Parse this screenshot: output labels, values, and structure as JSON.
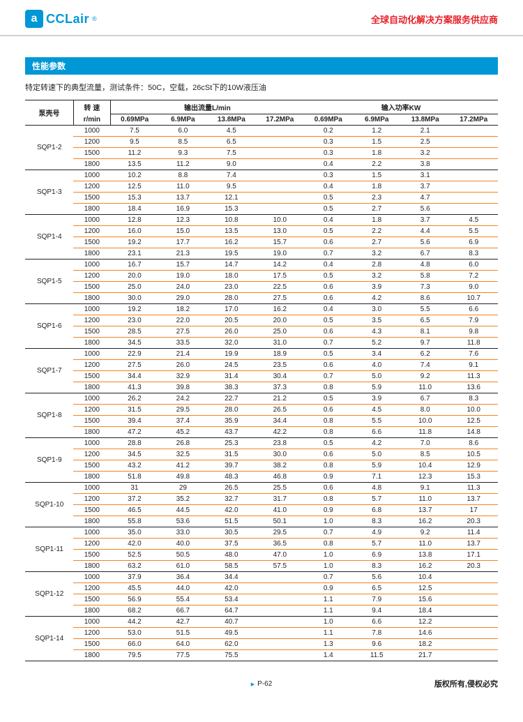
{
  "brand": {
    "logo_text": "CCLair",
    "reg_mark": "®"
  },
  "header": {
    "slogan": "全球自动化解决方案服务供应商"
  },
  "section": {
    "title": "性能参数"
  },
  "conditions": "特定转速下的典型流量，测试条件：50C，空载，26cSt下的10W液压油",
  "table": {
    "col_pump": "泵壳号",
    "col_speed": "转 速",
    "col_speed_unit": "r/min",
    "group_flow": "输出流量L/min",
    "group_power": "输入功率KW",
    "pressure_cols": [
      "0.69MPa",
      "6.9MPa",
      "13.8MPa",
      "17.2MPa"
    ],
    "groups": [
      {
        "pump": "SQP1-2",
        "rows": [
          {
            "r": "1000",
            "f": [
              "7.5",
              "6.0",
              "4.5",
              ""
            ],
            "p": [
              "0.2",
              "1.2",
              "2.1",
              ""
            ]
          },
          {
            "r": "1200",
            "f": [
              "9.5",
              "8.5",
              "6.5",
              ""
            ],
            "p": [
              "0.3",
              "1.5",
              "2.5",
              ""
            ]
          },
          {
            "r": "1500",
            "f": [
              "11.2",
              "9.3",
              "7.5",
              ""
            ],
            "p": [
              "0.3",
              "1.8",
              "3.2",
              ""
            ]
          },
          {
            "r": "1800",
            "f": [
              "13.5",
              "11.2",
              "9.0",
              ""
            ],
            "p": [
              "0.4",
              "2.2",
              "3.8",
              ""
            ]
          }
        ]
      },
      {
        "pump": "SQP1-3",
        "rows": [
          {
            "r": "1000",
            "f": [
              "10.2",
              "8.8",
              "7.4",
              ""
            ],
            "p": [
              "0.3",
              "1.5",
              "3.1",
              ""
            ]
          },
          {
            "r": "1200",
            "f": [
              "12.5",
              "11.0",
              "9.5",
              ""
            ],
            "p": [
              "0.4",
              "1.8",
              "3.7",
              ""
            ]
          },
          {
            "r": "1500",
            "f": [
              "15.3",
              "13.7",
              "12.1",
              ""
            ],
            "p": [
              "0.5",
              "2.3",
              "4.7",
              ""
            ]
          },
          {
            "r": "1800",
            "f": [
              "18.4",
              "16.9",
              "15.3",
              ""
            ],
            "p": [
              "0.5",
              "2.7",
              "5.6",
              ""
            ]
          }
        ]
      },
      {
        "pump": "SQP1-4",
        "rows": [
          {
            "r": "1000",
            "f": [
              "12.8",
              "12.3",
              "10.8",
              "10.0"
            ],
            "p": [
              "0.4",
              "1.8",
              "3.7",
              "4.5"
            ]
          },
          {
            "r": "1200",
            "f": [
              "16.0",
              "15.0",
              "13.5",
              "13.0"
            ],
            "p": [
              "0.5",
              "2.2",
              "4.4",
              "5.5"
            ]
          },
          {
            "r": "1500",
            "f": [
              "19.2",
              "17.7",
              "16.2",
              "15.7"
            ],
            "p": [
              "0.6",
              "2.7",
              "5.6",
              "6.9"
            ]
          },
          {
            "r": "1800",
            "f": [
              "23.1",
              "21.3",
              "19.5",
              "19.0"
            ],
            "p": [
              "0.7",
              "3.2",
              "6.7",
              "8.3"
            ]
          }
        ]
      },
      {
        "pump": "SQP1-5",
        "rows": [
          {
            "r": "1000",
            "f": [
              "16.7",
              "15.7",
              "14.7",
              "14.2"
            ],
            "p": [
              "0.4",
              "2.8",
              "4.8",
              "6.0"
            ]
          },
          {
            "r": "1200",
            "f": [
              "20.0",
              "19.0",
              "18.0",
              "17.5"
            ],
            "p": [
              "0.5",
              "3.2",
              "5.8",
              "7.2"
            ]
          },
          {
            "r": "1500",
            "f": [
              "25.0",
              "24.0",
              "23.0",
              "22.5"
            ],
            "p": [
              "0.6",
              "3.9",
              "7.3",
              "9.0"
            ]
          },
          {
            "r": "1800",
            "f": [
              "30.0",
              "29.0",
              "28.0",
              "27.5"
            ],
            "p": [
              "0.6",
              "4.2",
              "8.6",
              "10.7"
            ]
          }
        ]
      },
      {
        "pump": "SQP1-6",
        "rows": [
          {
            "r": "1000",
            "f": [
              "19.2",
              "18.2",
              "17.0",
              "16.2"
            ],
            "p": [
              "0.4",
              "3.0",
              "5.5",
              "6.6"
            ]
          },
          {
            "r": "1200",
            "f": [
              "23.0",
              "22.0",
              "20.5",
              "20.0"
            ],
            "p": [
              "0.5",
              "3.5",
              "6.5",
              "7.9"
            ]
          },
          {
            "r": "1500",
            "f": [
              "28.5",
              "27.5",
              "26.0",
              "25.0"
            ],
            "p": [
              "0.6",
              "4.3",
              "8.1",
              "9.8"
            ]
          },
          {
            "r": "1800",
            "f": [
              "34.5",
              "33.5",
              "32.0",
              "31.0"
            ],
            "p": [
              "0.7",
              "5.2",
              "9.7",
              "11.8"
            ]
          }
        ]
      },
      {
        "pump": "SQP1-7",
        "rows": [
          {
            "r": "1000",
            "f": [
              "22.9",
              "21.4",
              "19.9",
              "18.9"
            ],
            "p": [
              "0.5",
              "3.4",
              "6.2",
              "7.6"
            ]
          },
          {
            "r": "1200",
            "f": [
              "27.5",
              "26.0",
              "24.5",
              "23.5"
            ],
            "p": [
              "0.6",
              "4.0",
              "7.4",
              "9.1"
            ]
          },
          {
            "r": "1500",
            "f": [
              "34.4",
              "32.9",
              "31.4",
              "30.4"
            ],
            "p": [
              "0.7",
              "5.0",
              "9.2",
              "11.3"
            ]
          },
          {
            "r": "1800",
            "f": [
              "41.3",
              "39.8",
              "38.3",
              "37.3"
            ],
            "p": [
              "0.8",
              "5.9",
              "11.0",
              "13.6"
            ]
          }
        ]
      },
      {
        "pump": "SQP1-8",
        "rows": [
          {
            "r": "1000",
            "f": [
              "26.2",
              "24.2",
              "22.7",
              "21.2"
            ],
            "p": [
              "0.5",
              "3.9",
              "6.7",
              "8.3"
            ]
          },
          {
            "r": "1200",
            "f": [
              "31.5",
              "29.5",
              "28.0",
              "26.5"
            ],
            "p": [
              "0.6",
              "4.5",
              "8.0",
              "10.0"
            ]
          },
          {
            "r": "1500",
            "f": [
              "39.4",
              "37.4",
              "35.9",
              "34.4"
            ],
            "p": [
              "0.8",
              "5.5",
              "10.0",
              "12.5"
            ]
          },
          {
            "r": "1800",
            "f": [
              "47.2",
              "45.2",
              "43.7",
              "42.2"
            ],
            "p": [
              "0.8",
              "6.6",
              "11.8",
              "14.8"
            ]
          }
        ]
      },
      {
        "pump": "SQP1-9",
        "rows": [
          {
            "r": "1000",
            "f": [
              "28.8",
              "26.8",
              "25.3",
              "23.8"
            ],
            "p": [
              "0.5",
              "4.2",
              "7.0",
              "8.6"
            ]
          },
          {
            "r": "1200",
            "f": [
              "34.5",
              "32.5",
              "31.5",
              "30.0"
            ],
            "p": [
              "0.6",
              "5.0",
              "8.5",
              "10.5"
            ]
          },
          {
            "r": "1500",
            "f": [
              "43.2",
              "41.2",
              "39.7",
              "38.2"
            ],
            "p": [
              "0.8",
              "5.9",
              "10.4",
              "12.9"
            ]
          },
          {
            "r": "1800",
            "f": [
              "51.8",
              "49.8",
              "48.3",
              "46.8"
            ],
            "p": [
              "0.9",
              "7.1",
              "12.3",
              "15.3"
            ]
          }
        ]
      },
      {
        "pump": "SQP1-10",
        "rows": [
          {
            "r": "1000",
            "f": [
              "31",
              "29",
              "26.5",
              "25.5"
            ],
            "p": [
              "0.6",
              "4.8",
              "9.1",
              "11.3"
            ]
          },
          {
            "r": "1200",
            "f": [
              "37.2",
              "35.2",
              "32.7",
              "31.7"
            ],
            "p": [
              "0.8",
              "5.7",
              "11.0",
              "13.7"
            ]
          },
          {
            "r": "1500",
            "f": [
              "46.5",
              "44.5",
              "42.0",
              "41.0"
            ],
            "p": [
              "0.9",
              "6.8",
              "13.7",
              "17"
            ]
          },
          {
            "r": "1800",
            "f": [
              "55.8",
              "53.6",
              "51.5",
              "50.1"
            ],
            "p": [
              "1.0",
              "8.3",
              "16.2",
              "20.3"
            ]
          }
        ]
      },
      {
        "pump": "SQP1-11",
        "rows": [
          {
            "r": "1000",
            "f": [
              "35.0",
              "33.0",
              "30.5",
              "29.5"
            ],
            "p": [
              "0.7",
              "4.9",
              "9.2",
              "11.4"
            ]
          },
          {
            "r": "1200",
            "f": [
              "42.0",
              "40.0",
              "37.5",
              "36.5"
            ],
            "p": [
              "0.8",
              "5.7",
              "11.0",
              "13.7"
            ]
          },
          {
            "r": "1500",
            "f": [
              "52.5",
              "50.5",
              "48.0",
              "47.0"
            ],
            "p": [
              "1.0",
              "6.9",
              "13.8",
              "17.1"
            ]
          },
          {
            "r": "1800",
            "f": [
              "63.2",
              "61.0",
              "58.5",
              "57.5"
            ],
            "p": [
              "1.0",
              "8.3",
              "16.2",
              "20.3"
            ]
          }
        ]
      },
      {
        "pump": "SQP1-12",
        "rows": [
          {
            "r": "1000",
            "f": [
              "37.9",
              "36.4",
              "34.4",
              ""
            ],
            "p": [
              "0.7",
              "5.6",
              "10.4",
              ""
            ]
          },
          {
            "r": "1200",
            "f": [
              "45.5",
              "44.0",
              "42.0",
              ""
            ],
            "p": [
              "0.9",
              "6.5",
              "12.5",
              ""
            ]
          },
          {
            "r": "1500",
            "f": [
              "56.9",
              "55.4",
              "53.4",
              ""
            ],
            "p": [
              "1.1",
              "7.9",
              "15.6",
              ""
            ]
          },
          {
            "r": "1800",
            "f": [
              "68.2",
              "66.7",
              "64.7",
              ""
            ],
            "p": [
              "1.1",
              "9.4",
              "18.4",
              ""
            ]
          }
        ]
      },
      {
        "pump": "SQP1-14",
        "rows": [
          {
            "r": "1000",
            "f": [
              "44.2",
              "42.7",
              "40.7",
              ""
            ],
            "p": [
              "1.0",
              "6.6",
              "12.2",
              ""
            ]
          },
          {
            "r": "1200",
            "f": [
              "53.0",
              "51.5",
              "49.5",
              ""
            ],
            "p": [
              "1.1",
              "7.8",
              "14.6",
              ""
            ]
          },
          {
            "r": "1500",
            "f": [
              "66.0",
              "64.0",
              "62.0",
              ""
            ],
            "p": [
              "1.3",
              "9.6",
              "18.2",
              ""
            ]
          },
          {
            "r": "1800",
            "f": [
              "79.5",
              "77.5",
              "75.5",
              ""
            ],
            "p": [
              "1.4",
              "11.5",
              "21.7",
              ""
            ]
          }
        ]
      }
    ]
  },
  "footer": {
    "page": "P-62",
    "copyright": "版权所有,侵权必究"
  },
  "style": {
    "brand_color": "#0097d6",
    "accent_color": "#e62129",
    "row_divider": "#f58220",
    "group_divider": "#231f20",
    "text_color": "#231f20"
  }
}
